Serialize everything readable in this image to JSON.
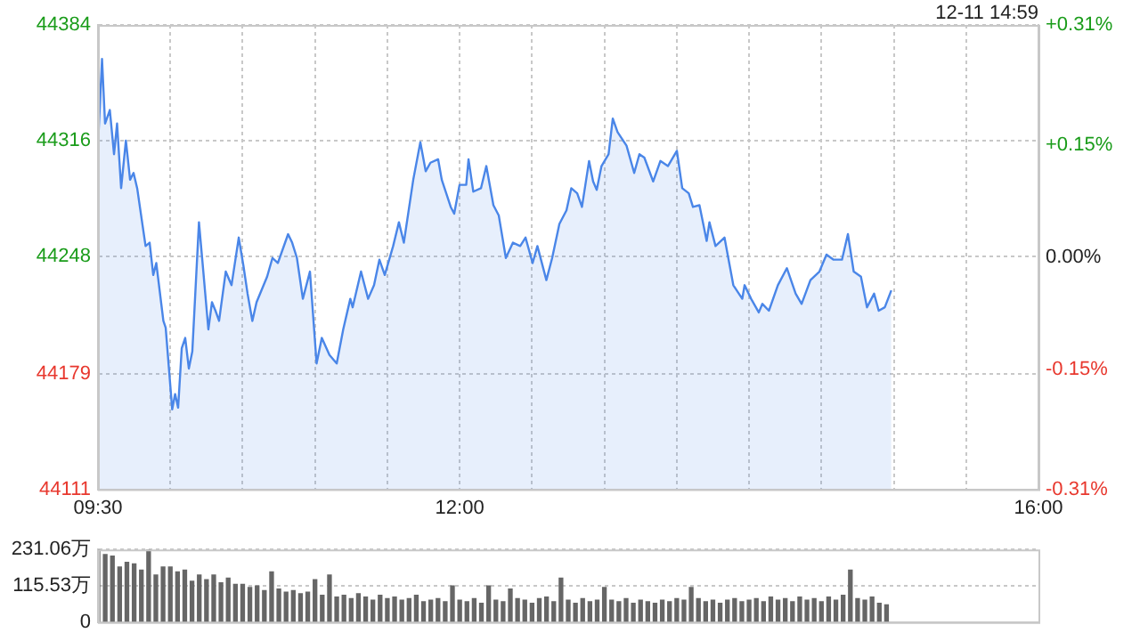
{
  "chart_data": [
    {
      "type": "area",
      "annotations": [
        "12-11 14:59"
      ],
      "xlim": [
        9.5,
        16
      ],
      "xticks": [
        {
          "value": 9.5,
          "label": "09:30"
        },
        {
          "value": 10,
          "label": null
        },
        {
          "value": 10.5,
          "label": null
        },
        {
          "value": 11,
          "label": null
        },
        {
          "value": 11.5,
          "label": null
        },
        {
          "value": 12,
          "label": "12:00"
        },
        {
          "value": 12.5,
          "label": null
        },
        {
          "value": 13,
          "label": null
        },
        {
          "value": 13.5,
          "label": null
        },
        {
          "value": 14,
          "label": null
        },
        {
          "value": 14.5,
          "label": null
        },
        {
          "value": 15,
          "label": null
        },
        {
          "value": 15.5,
          "label": null
        },
        {
          "value": 16,
          "label": "16:00"
        }
      ],
      "ylim": [
        44111,
        44384
      ],
      "yticks": [
        44111,
        44179,
        44248,
        44316,
        44384
      ],
      "y2lim": [
        -0.31,
        0.31
      ],
      "y2ticks": [
        {
          "value": -0.31,
          "label": "-0.31%"
        },
        {
          "value": -0.15,
          "label": "-0.15%"
        },
        {
          "value": 0,
          "label": "0.00%"
        },
        {
          "value": 0.15,
          "label": "+0.15%"
        },
        {
          "value": 0.31,
          "label": "+0.31%"
        }
      ],
      "grid": true,
      "series": [
        {
          "color": "#4a86e8",
          "x": [
            9.5,
            9.528,
            9.549,
            9.582,
            9.611,
            9.632,
            9.66,
            9.693,
            9.722,
            9.746,
            9.771,
            9.829,
            9.857,
            9.882,
            9.903,
            9.952,
            9.968,
            10.013,
            10.033,
            10.054,
            10.079,
            10.103,
            10.128,
            10.152,
            10.198,
            10.226,
            10.263,
            10.288,
            10.312,
            10.337,
            10.383,
            10.423,
            10.473,
            10.506,
            10.534,
            10.567,
            10.596,
            10.669,
            10.706,
            10.743,
            10.814,
            10.842,
            10.875,
            10.916,
            10.965,
            11.011,
            11.047,
            11.1,
            11.15,
            11.195,
            11.244,
            11.26,
            11.318,
            11.367,
            11.408,
            11.445,
            11.482,
            11.54,
            11.58,
            11.614,
            11.679,
            11.728,
            11.765,
            11.798,
            11.851,
            11.876,
            11.938,
            11.962,
            11.999,
            12.045,
            12.061,
            12.094,
            12.147,
            12.184,
            12.233,
            12.27,
            12.319,
            12.368,
            12.418,
            12.455,
            12.504,
            12.537,
            12.599,
            12.639,
            12.689,
            12.738,
            12.771,
            12.812,
            12.845,
            12.894,
            12.922,
            12.947,
            12.98,
            13.029,
            13.058,
            13.091,
            13.153,
            13.206,
            13.242,
            13.276,
            13.337,
            13.387,
            13.439,
            13.501,
            13.538,
            13.583,
            13.612,
            13.657,
            13.707,
            13.726,
            13.768,
            13.83,
            13.891,
            13.953,
            13.969,
            14.014,
            14.067,
            14.092,
            14.137,
            14.199,
            14.261,
            14.322,
            14.363,
            14.424,
            14.486,
            14.535,
            14.584,
            14.642,
            14.683,
            14.723,
            14.773,
            14.815,
            14.864,
            14.896,
            14.938,
            14.983
          ],
          "values": [
            44313,
            44364,
            44326,
            44334,
            44308,
            44326,
            44288,
            44316,
            44293,
            44297,
            44288,
            44254,
            44256,
            44237,
            44244,
            44210,
            44206,
            44158,
            44167,
            44159,
            44194,
            44200,
            44182,
            44192,
            44268,
            44241,
            44205,
            44221,
            44216,
            44210,
            44239,
            44231,
            44259,
            44242,
            44226,
            44210,
            44221,
            44236,
            44247,
            44244,
            44261,
            44256,
            44247,
            44223,
            44239,
            44185,
            44200,
            44190,
            44185,
            44205,
            44223,
            44218,
            44239,
            44223,
            44231,
            44246,
            44237,
            44254,
            44268,
            44256,
            44293,
            44315,
            44298,
            44303,
            44305,
            44293,
            44277,
            44273,
            44290,
            44290,
            44305,
            44286,
            44288,
            44301,
            44278,
            44272,
            44247,
            44256,
            44254,
            44259,
            44244,
            44254,
            44234,
            44247,
            44267,
            44275,
            44288,
            44285,
            44277,
            44304,
            44292,
            44287,
            44301,
            44308,
            44329,
            44321,
            44313,
            44297,
            44308,
            44306,
            44292,
            44304,
            44301,
            44310,
            44288,
            44285,
            44277,
            44278,
            44257,
            44268,
            44254,
            44259,
            44231,
            44223,
            44231,
            44223,
            44215,
            44220,
            44216,
            44231,
            44241,
            44226,
            44220,
            44234,
            44239,
            44249,
            44246,
            44246,
            44261,
            44239,
            44236,
            44218,
            44226,
            44216,
            44218,
            44228
          ]
        }
      ]
    },
    {
      "type": "bar",
      "xlim": [
        9.5,
        16
      ],
      "ylim": [
        0,
        231.06
      ],
      "yticks": [
        0,
        {
          "value": 115.53,
          "label": "115.53万"
        },
        {
          "value": 231.06,
          "label": "231.06万"
        }
      ],
      "grid": "y",
      "tick_labels": "y",
      "series": [
        {
          "color": "#666666",
          "x": [
            9.5,
            9.55,
            9.6,
            9.65,
            9.7,
            9.75,
            9.8,
            9.85,
            9.9,
            9.95,
            10,
            10.05,
            10.1,
            10.15,
            10.2,
            10.25,
            10.3,
            10.35,
            10.4,
            10.45,
            10.5,
            10.55,
            10.6,
            10.65,
            10.7,
            10.75,
            10.8,
            10.85,
            10.9,
            10.95,
            11,
            11.05,
            11.1,
            11.15,
            11.2,
            11.25,
            11.3,
            11.35,
            11.4,
            11.45,
            11.5,
            11.55,
            11.6,
            11.65,
            11.7,
            11.75,
            11.8,
            11.85,
            11.9,
            11.95,
            12,
            12.05,
            12.1,
            12.15,
            12.2,
            12.25,
            12.3,
            12.35,
            12.4,
            12.45,
            12.5,
            12.55,
            12.6,
            12.65,
            12.7,
            12.75,
            12.8,
            12.85,
            12.9,
            12.95,
            13,
            13.05,
            13.1,
            13.15,
            13.2,
            13.25,
            13.3,
            13.35,
            13.4,
            13.45,
            13.5,
            13.55,
            13.6,
            13.65,
            13.7,
            13.75,
            13.8,
            13.85,
            13.9,
            13.95,
            14,
            14.05,
            14.1,
            14.15,
            14.2,
            14.25,
            14.3,
            14.35,
            14.4,
            14.45,
            14.5,
            14.55,
            14.6,
            14.65,
            14.7,
            14.75,
            14.8,
            14.85,
            14.9,
            14.95
          ],
          "values": [
            231,
            215,
            210,
            175,
            190,
            185,
            165,
            230,
            150,
            175,
            175,
            160,
            165,
            130,
            150,
            135,
            150,
            125,
            140,
            120,
            120,
            110,
            115,
            100,
            160,
            105,
            95,
            100,
            90,
            95,
            135,
            85,
            150,
            80,
            85,
            75,
            90,
            80,
            70,
            85,
            75,
            80,
            70,
            75,
            85,
            65,
            70,
            75,
            65,
            115,
            70,
            65,
            75,
            60,
            115,
            70,
            65,
            105,
            75,
            70,
            60,
            75,
            80,
            65,
            140,
            70,
            60,
            75,
            65,
            70,
            110,
            70,
            65,
            75,
            60,
            70,
            65,
            60,
            70,
            65,
            75,
            70,
            110,
            75,
            65,
            70,
            60,
            70,
            75,
            65,
            70,
            75,
            65,
            80,
            70,
            75,
            65,
            80,
            70,
            75,
            65,
            80,
            70,
            85,
            165,
            75,
            70,
            80,
            60,
            55
          ]
        }
      ]
    }
  ]
}
